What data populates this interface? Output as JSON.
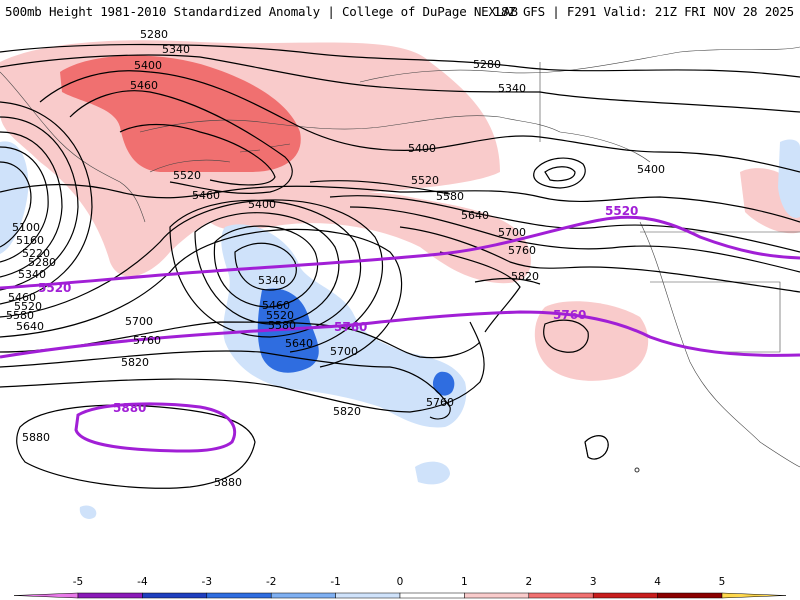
{
  "header": {
    "title_left": "500mb Height 1981-2010 Standardized Anomaly | College of DuPage NEXLAB",
    "title_right": "18Z GFS | F291 Valid: 21Z FRI NOV 28 2025"
  },
  "contour_labels": {
    "l5280a": "5280",
    "l5340a": "5340",
    "l5400a": "5400",
    "l5460a": "5460",
    "l5520a": "5520",
    "l5460b": "5460",
    "l5400b": "5400",
    "l5280b": "5280",
    "l5340b": "5340",
    "l5400c": "5400",
    "l5520b": "5520",
    "l5580a": "5580",
    "l5640a": "5640",
    "l5700a": "5700",
    "l5760a": "5760",
    "l5820a": "5820",
    "l5400d": "5400",
    "l5100": "5100",
    "l5160": "5160",
    "l5220": "5220",
    "l5280c": "5280",
    "l5340c": "5340",
    "l5460c": "5460",
    "l5520c": "5520",
    "l5580b": "5580",
    "l5640b": "5640",
    "l5340d": "5340",
    "l5460d": "5460",
    "l5520d": "5520",
    "l5580c": "5580",
    "l5640c": "5640",
    "l5700b": "5700",
    "l5700c": "5700",
    "l5760b": "5760",
    "l5820b": "5820",
    "l5820c": "5820",
    "l5760c": "5760",
    "l5880a": "5880",
    "l5880b": "5880"
  },
  "purple_labels": {
    "p5520a": "5520",
    "p5520b": "5520",
    "p5760a": "5760",
    "p5760b": "5760",
    "p5880": "5880"
  },
  "legend": {
    "ticks": [
      "-5",
      "-4",
      "-3",
      "-2",
      "-1",
      "0",
      "1",
      "2",
      "3",
      "4",
      "5"
    ],
    "colors": [
      "#e879e8",
      "#8a1ab8",
      "#1f3fbf",
      "#2f6de0",
      "#7fb0f2",
      "#cfe2fa",
      "#ffffff",
      "#f9cbcb",
      "#f07070",
      "#c81d1d",
      "#8b0000",
      "#f5a000",
      "#ffd84d"
    ]
  }
}
